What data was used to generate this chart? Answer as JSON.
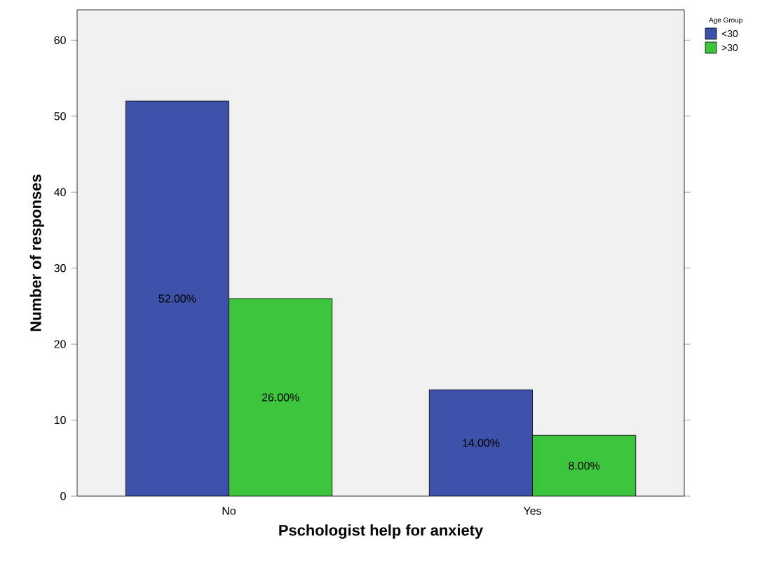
{
  "chart_data": {
    "type": "bar",
    "xlabel": "Pschologist help for anxiety",
    "ylabel": "Number of responses",
    "legend_title": "Age Group",
    "categories": [
      "No",
      "Yes"
    ],
    "series": [
      {
        "name": "<30",
        "color": "#3d51a8",
        "values": [
          52,
          14
        ],
        "value_labels": [
          "52.00%",
          "14.00%"
        ]
      },
      {
        "name": ">30",
        "color": "#3cc43c",
        "values": [
          26,
          8
        ],
        "value_labels": [
          "26.00%",
          "8.00%"
        ]
      }
    ],
    "ylim": [
      0,
      64
    ],
    "yticks": [
      0,
      10,
      20,
      30,
      40,
      50,
      60
    ],
    "grid": false,
    "legend": "top right"
  }
}
